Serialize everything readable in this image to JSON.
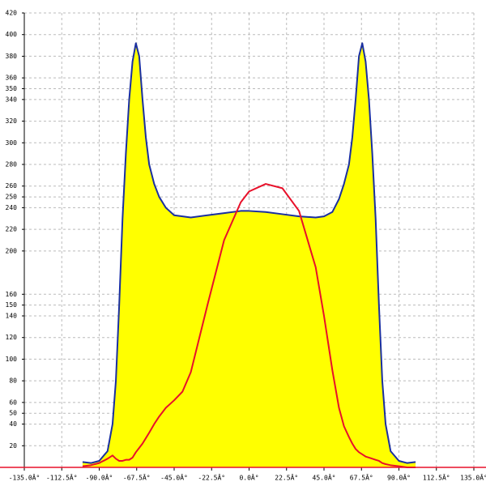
{
  "chart_data": {
    "type": "area",
    "x": [
      -100,
      -95,
      -90,
      -85,
      -82,
      -80,
      -78,
      -76,
      -74,
      -72,
      -70,
      -68,
      -66,
      -64,
      -62,
      -60,
      -57,
      -54,
      -50,
      -45,
      -40,
      -35,
      -25,
      -15,
      -5,
      0,
      10,
      20,
      30,
      40,
      45,
      50,
      54,
      57,
      60,
      62,
      64,
      66,
      68,
      70,
      72,
      74,
      76,
      78,
      80,
      82,
      85,
      90,
      95,
      100
    ],
    "series": [
      {
        "color": "#1a2fa0",
        "fill": "#ffff00",
        "values": [
          5,
          4,
          6,
          15,
          40,
          80,
          150,
          230,
          290,
          340,
          375,
          392,
          380,
          340,
          305,
          280,
          262,
          250,
          240,
          233,
          232,
          231,
          233,
          235,
          237,
          237,
          236,
          234,
          232,
          231,
          232,
          236,
          248,
          262,
          280,
          305,
          340,
          380,
          392,
          375,
          340,
          290,
          230,
          150,
          80,
          40,
          15,
          6,
          4,
          5
        ]
      },
      {
        "color": "#e8102a",
        "values": [
          1,
          2,
          4,
          8,
          11,
          8,
          6,
          6,
          7,
          7,
          9,
          14,
          18,
          22,
          27,
          32,
          40,
          47,
          55,
          62,
          70,
          88,
          150,
          210,
          245,
          255,
          262,
          258,
          237,
          185,
          140,
          90,
          55,
          38,
          28,
          22,
          17,
          14,
          12,
          10,
          9,
          8,
          7,
          6,
          4,
          3,
          2,
          1,
          0,
          0
        ]
      }
    ],
    "xlim": [
      -135,
      135
    ],
    "xticks": [
      {
        "value": -135,
        "label": "-135.0Â°"
      },
      {
        "value": -112.5,
        "label": "-112.5Â°"
      },
      {
        "value": -90,
        "label": "-90.0Â°"
      },
      {
        "value": -67.5,
        "label": "-67.5Â°"
      },
      {
        "value": -45,
        "label": "-45.0Â°"
      },
      {
        "value": -22.5,
        "label": "-22.5Â°"
      },
      {
        "value": 0,
        "label": "0.0Â°"
      },
      {
        "value": 22.5,
        "label": "22.5Â°"
      },
      {
        "value": 45,
        "label": "45.0Â°"
      },
      {
        "value": 67.5,
        "label": "67.5Â°"
      },
      {
        "value": 90,
        "label": "90.0Â°"
      },
      {
        "value": 112.5,
        "label": "112.5Â°"
      },
      {
        "value": 135,
        "label": "135.0Â°"
      }
    ],
    "ylim": [
      0,
      420
    ],
    "yticks": [
      20,
      40,
      50,
      60,
      80,
      100,
      120,
      140,
      150,
      160,
      200,
      220,
      240,
      250,
      260,
      280,
      300,
      320,
      340,
      350,
      360,
      380,
      400,
      420
    ],
    "grid": true
  }
}
